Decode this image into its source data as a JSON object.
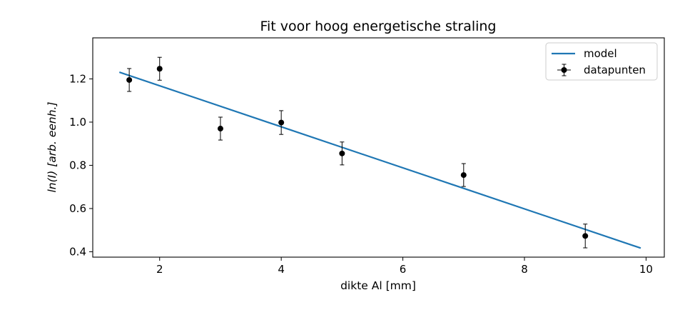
{
  "chart_data": {
    "type": "scatter",
    "title": "Fit voor hoog energetische straling",
    "xlabel": "dikte Al [mm]",
    "ylabel": "ln(I) [arb. eenh.]",
    "xlim": [
      0.9,
      10.3
    ],
    "ylim": [
      0.375,
      1.39
    ],
    "xticks": [
      2,
      4,
      6,
      8,
      10
    ],
    "yticks": [
      0.4,
      0.6,
      0.8,
      1.0,
      1.2
    ],
    "xtick_labels": [
      "2",
      "4",
      "6",
      "8",
      "10"
    ],
    "ytick_labels": [
      "0.4",
      "0.6",
      "0.8",
      "1.0",
      "1.2"
    ],
    "grid": false,
    "legend": {
      "position": "top-right",
      "entries": [
        "model",
        "datapunten"
      ]
    },
    "series": [
      {
        "name": "datapunten",
        "kind": "errorbar",
        "color": "#000000",
        "x": [
          1.5,
          2,
          3,
          4,
          5,
          7,
          9
        ],
        "y": [
          1.195,
          1.247,
          0.97,
          0.998,
          0.855,
          0.755,
          0.473
        ],
        "yerr": [
          0.053,
          0.053,
          0.053,
          0.055,
          0.053,
          0.053,
          0.055
        ]
      },
      {
        "name": "model",
        "kind": "line",
        "color": "#1f77b4",
        "x": [
          1.35,
          9.9
        ],
        "y": [
          1.23,
          0.418
        ]
      }
    ]
  }
}
